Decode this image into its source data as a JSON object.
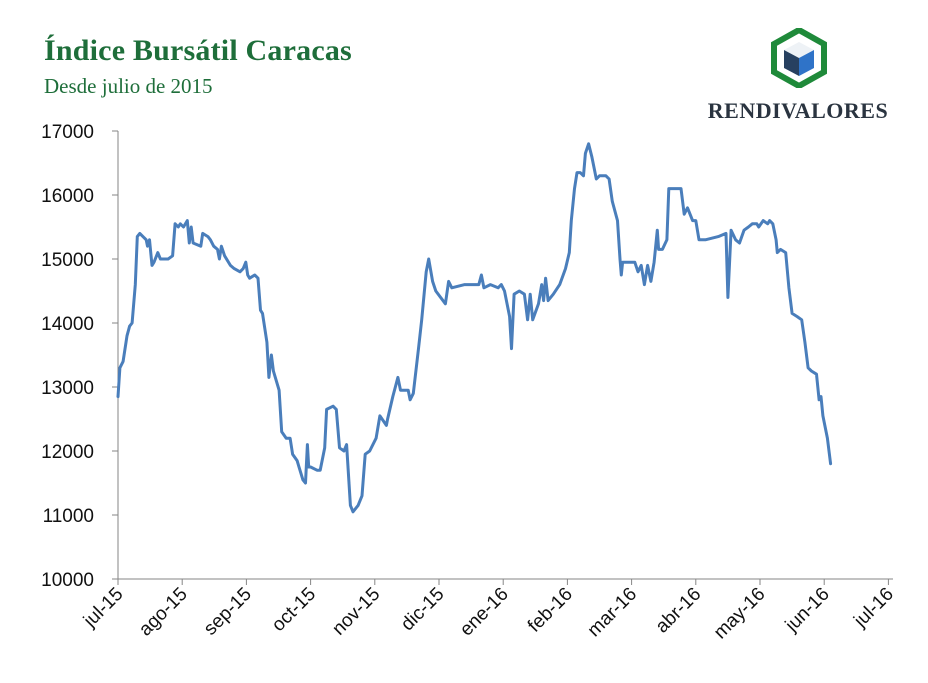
{
  "header": {
    "title": "Índice Bursátil Caracas",
    "subtitle": "Desde julio de 2015"
  },
  "logo": {
    "text": "RENDIVALORES",
    "icon": "hexagon-cube-icon",
    "colors": {
      "green": "#1f8a3a",
      "dark": "#2a3440",
      "blue": "#2f73c8",
      "navy": "#274060"
    }
  },
  "chart_data": {
    "type": "line",
    "title": "Índice Bursátil Caracas",
    "subtitle": "Desde julio de 2015",
    "xlabel": "",
    "ylabel": "",
    "ylim": [
      10000,
      17000
    ],
    "yticks": [
      10000,
      11000,
      12000,
      13000,
      14000,
      15000,
      16000,
      17000
    ],
    "xticks": [
      "jul-15",
      "ago-15",
      "sep-15",
      "oct-15",
      "nov-15",
      "dic-15",
      "ene-16",
      "feb-16",
      "mar-16",
      "abr-16",
      "may-16",
      "jun-16",
      "jul-16"
    ],
    "x_unit": "month index (0 = jul-15)",
    "line_color": "#4a7ebb",
    "grid": false,
    "series": [
      {
        "name": "",
        "points": [
          [
            0.0,
            12850
          ],
          [
            0.03,
            13300
          ],
          [
            0.08,
            13400
          ],
          [
            0.14,
            13800
          ],
          [
            0.18,
            13950
          ],
          [
            0.22,
            14000
          ],
          [
            0.27,
            14600
          ],
          [
            0.3,
            15350
          ],
          [
            0.34,
            15400
          ],
          [
            0.44,
            15300
          ],
          [
            0.46,
            15200
          ],
          [
            0.49,
            15300
          ],
          [
            0.53,
            14900
          ],
          [
            0.56,
            14950
          ],
          [
            0.62,
            15100
          ],
          [
            0.66,
            15000
          ],
          [
            0.78,
            15000
          ],
          [
            0.85,
            15050
          ],
          [
            0.89,
            15550
          ],
          [
            0.94,
            15500
          ],
          [
            0.97,
            15550
          ],
          [
            1.02,
            15500
          ],
          [
            1.08,
            15600
          ],
          [
            1.11,
            15250
          ],
          [
            1.14,
            15500
          ],
          [
            1.17,
            15250
          ],
          [
            1.29,
            15200
          ],
          [
            1.32,
            15400
          ],
          [
            1.4,
            15350
          ],
          [
            1.44,
            15300
          ],
          [
            1.49,
            15200
          ],
          [
            1.55,
            15150
          ],
          [
            1.58,
            15000
          ],
          [
            1.61,
            15200
          ],
          [
            1.66,
            15050
          ],
          [
            1.75,
            14900
          ],
          [
            1.81,
            14850
          ],
          [
            1.9,
            14800
          ],
          [
            1.95,
            14850
          ],
          [
            1.99,
            14950
          ],
          [
            2.02,
            14750
          ],
          [
            2.05,
            14700
          ],
          [
            2.13,
            14750
          ],
          [
            2.18,
            14700
          ],
          [
            2.22,
            14200
          ],
          [
            2.25,
            14150
          ],
          [
            2.32,
            13700
          ],
          [
            2.35,
            13150
          ],
          [
            2.39,
            13500
          ],
          [
            2.42,
            13250
          ],
          [
            2.51,
            12950
          ],
          [
            2.55,
            12300
          ],
          [
            2.62,
            12200
          ],
          [
            2.68,
            12200
          ],
          [
            2.72,
            11950
          ],
          [
            2.79,
            11850
          ],
          [
            2.82,
            11750
          ],
          [
            2.88,
            11550
          ],
          [
            2.92,
            11500
          ],
          [
            2.95,
            12100
          ],
          [
            2.97,
            11750
          ],
          [
            3.0,
            11750
          ],
          [
            3.1,
            11700
          ],
          [
            3.15,
            11700
          ],
          [
            3.22,
            12050
          ],
          [
            3.25,
            12650
          ],
          [
            3.35,
            12700
          ],
          [
            3.4,
            12650
          ],
          [
            3.45,
            12050
          ],
          [
            3.52,
            12000
          ],
          [
            3.56,
            12100
          ],
          [
            3.62,
            11150
          ],
          [
            3.66,
            11050
          ],
          [
            3.74,
            11150
          ],
          [
            3.8,
            11300
          ],
          [
            3.85,
            11950
          ],
          [
            3.92,
            12000
          ],
          [
            4.02,
            12200
          ],
          [
            4.08,
            12550
          ],
          [
            4.18,
            12400
          ],
          [
            4.2,
            12500
          ],
          [
            4.28,
            12850
          ],
          [
            4.36,
            13150
          ],
          [
            4.4,
            12950
          ],
          [
            4.52,
            12950
          ],
          [
            4.55,
            12800
          ],
          [
            4.6,
            12900
          ],
          [
            4.68,
            13600
          ],
          [
            4.73,
            14050
          ],
          [
            4.8,
            14800
          ],
          [
            4.84,
            15000
          ],
          [
            4.9,
            14650
          ],
          [
            4.95,
            14500
          ],
          [
            5.1,
            14300
          ],
          [
            5.15,
            14650
          ],
          [
            5.2,
            14550
          ],
          [
            5.4,
            14600
          ],
          [
            5.62,
            14600
          ],
          [
            5.66,
            14750
          ],
          [
            5.7,
            14550
          ],
          [
            5.8,
            14600
          ],
          [
            5.92,
            14550
          ],
          [
            5.97,
            14600
          ],
          [
            6.02,
            14500
          ],
          [
            6.1,
            14100
          ],
          [
            6.13,
            13600
          ],
          [
            6.17,
            14450
          ],
          [
            6.25,
            14500
          ],
          [
            6.33,
            14450
          ],
          [
            6.38,
            14050
          ],
          [
            6.42,
            14450
          ],
          [
            6.46,
            14050
          ],
          [
            6.55,
            14300
          ],
          [
            6.6,
            14600
          ],
          [
            6.63,
            14350
          ],
          [
            6.66,
            14700
          ],
          [
            6.7,
            14350
          ],
          [
            6.78,
            14450
          ],
          [
            6.88,
            14600
          ],
          [
            6.97,
            14850
          ],
          [
            7.03,
            15100
          ],
          [
            7.06,
            15600
          ],
          [
            7.11,
            16100
          ],
          [
            7.15,
            16350
          ],
          [
            7.2,
            16350
          ],
          [
            7.25,
            16300
          ],
          [
            7.28,
            16650
          ],
          [
            7.33,
            16800
          ],
          [
            7.38,
            16600
          ],
          [
            7.42,
            16400
          ],
          [
            7.45,
            16250
          ],
          [
            7.5,
            16300
          ],
          [
            7.6,
            16300
          ],
          [
            7.65,
            16250
          ],
          [
            7.7,
            15900
          ],
          [
            7.78,
            15600
          ],
          [
            7.82,
            15000
          ],
          [
            7.84,
            14750
          ],
          [
            7.86,
            14950
          ],
          [
            7.92,
            14950
          ],
          [
            8.05,
            14950
          ],
          [
            8.1,
            14800
          ],
          [
            8.15,
            14900
          ],
          [
            8.2,
            14600
          ],
          [
            8.25,
            14900
          ],
          [
            8.3,
            14650
          ],
          [
            8.35,
            14950
          ],
          [
            8.4,
            15450
          ],
          [
            8.42,
            15150
          ],
          [
            8.48,
            15150
          ],
          [
            8.55,
            15300
          ],
          [
            8.58,
            16100
          ],
          [
            8.63,
            16100
          ],
          [
            8.7,
            16100
          ],
          [
            8.77,
            16100
          ],
          [
            8.82,
            15700
          ],
          [
            8.87,
            15800
          ],
          [
            8.95,
            15600
          ],
          [
            9.0,
            15600
          ],
          [
            9.05,
            15300
          ],
          [
            9.15,
            15300
          ],
          [
            9.35,
            15350
          ],
          [
            9.47,
            15400
          ],
          [
            9.5,
            14400
          ],
          [
            9.55,
            15450
          ],
          [
            9.62,
            15300
          ],
          [
            9.68,
            15250
          ],
          [
            9.75,
            15450
          ],
          [
            9.82,
            15500
          ],
          [
            9.88,
            15550
          ],
          [
            9.95,
            15550
          ],
          [
            9.98,
            15500
          ],
          [
            10.05,
            15600
          ],
          [
            10.12,
            15550
          ],
          [
            10.15,
            15600
          ],
          [
            10.2,
            15550
          ],
          [
            10.25,
            15300
          ],
          [
            10.27,
            15100
          ],
          [
            10.32,
            15150
          ],
          [
            10.4,
            15100
          ],
          [
            10.45,
            14550
          ],
          [
            10.5,
            14150
          ],
          [
            10.58,
            14100
          ],
          [
            10.65,
            14050
          ],
          [
            10.7,
            13700
          ],
          [
            10.75,
            13300
          ],
          [
            10.8,
            13250
          ],
          [
            10.88,
            13200
          ],
          [
            10.92,
            12800
          ],
          [
            10.95,
            12850
          ],
          [
            10.98,
            12550
          ],
          [
            11.05,
            12200
          ],
          [
            11.1,
            11800
          ]
        ]
      }
    ]
  }
}
